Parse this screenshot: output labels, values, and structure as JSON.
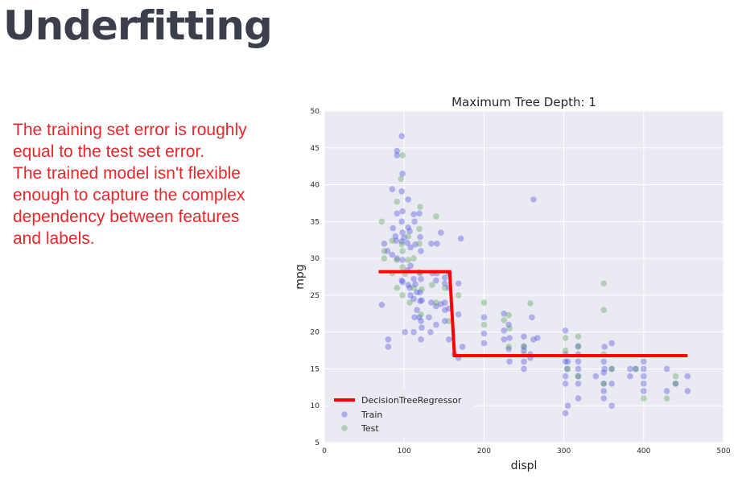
{
  "slide": {
    "title": "Underfitting",
    "body_lines": [
      "The training set error is roughly",
      "equal to the test set error.",
      "The trained model isn't flexible",
      "enough to capture the complex",
      "dependency between features",
      "and labels."
    ],
    "text_color": "#e8262b",
    "title_color": "#3b3f4c"
  },
  "chart_data": {
    "type": "scatter",
    "title": "Maximum Tree Depth: 1",
    "xlabel": "displ",
    "ylabel": "mpg",
    "xlim": [
      0,
      500
    ],
    "ylim": [
      5,
      50
    ],
    "xticks": [
      0,
      100,
      200,
      300,
      400,
      500
    ],
    "yticks": [
      5,
      10,
      15,
      20,
      25,
      30,
      35,
      40,
      45,
      50
    ],
    "grid": true,
    "background": "#eaeaf2",
    "legend_position": "lower-left",
    "series": [
      {
        "name": "Train",
        "kind": "scatter",
        "color": "#4040e0",
        "points": [
          [
            91,
            44.6
          ],
          [
            97,
            46.6
          ],
          [
            91,
            44
          ],
          [
            98,
            41.5
          ],
          [
            85,
            39.4
          ],
          [
            97,
            39.1
          ],
          [
            105,
            38
          ],
          [
            98,
            36.4
          ],
          [
            113,
            35
          ],
          [
            91,
            36.1
          ],
          [
            97,
            35
          ],
          [
            119,
            36.1
          ],
          [
            98,
            33.5
          ],
          [
            105,
            34.2
          ],
          [
            107,
            33.7
          ],
          [
            120,
            32.9
          ],
          [
            86,
            34.1
          ],
          [
            89,
            33
          ],
          [
            90,
            32.4
          ],
          [
            97,
            32.3
          ],
          [
            104,
            32.1
          ],
          [
            108,
            31.5
          ],
          [
            114,
            31.9
          ],
          [
            121,
            31
          ],
          [
            134,
            32
          ],
          [
            141,
            32
          ],
          [
            146,
            33.5
          ],
          [
            75,
            32
          ],
          [
            79,
            31
          ],
          [
            85,
            30.5
          ],
          [
            91,
            30
          ],
          [
            98,
            29.8
          ],
          [
            108,
            29
          ],
          [
            119,
            28.1
          ],
          [
            121,
            27.2
          ],
          [
            135,
            28
          ],
          [
            140,
            27
          ],
          [
            151,
            27.4
          ],
          [
            151,
            26.6
          ],
          [
            156,
            26
          ],
          [
            168,
            26.6
          ],
          [
            97,
            27
          ],
          [
            98,
            26.8
          ],
          [
            105,
            26.4
          ],
          [
            107,
            26
          ],
          [
            120,
            25.4
          ],
          [
            122,
            24.3
          ],
          [
            134,
            24
          ],
          [
            140,
            23.5
          ],
          [
            146,
            23.8
          ],
          [
            151,
            23
          ],
          [
            156,
            23.2
          ],
          [
            168,
            22.4
          ],
          [
            171,
            32.7
          ],
          [
            108,
            25
          ],
          [
            112,
            24.5
          ],
          [
            116,
            23
          ],
          [
            119,
            22
          ],
          [
            121,
            21.5
          ],
          [
            122,
            20.6
          ],
          [
            133,
            20
          ],
          [
            140,
            21
          ],
          [
            151,
            21.5
          ],
          [
            156,
            19
          ],
          [
            163,
            17
          ],
          [
            168,
            16.5
          ],
          [
            173,
            18
          ],
          [
            200,
            22
          ],
          [
            200,
            19.8
          ],
          [
            200,
            18.5
          ],
          [
            225,
            22.5
          ],
          [
            225,
            20.2
          ],
          [
            225,
            19
          ],
          [
            231,
            17.7
          ],
          [
            231,
            21
          ],
          [
            232,
            19.2
          ],
          [
            250,
            18
          ],
          [
            250,
            17.5
          ],
          [
            250,
            16
          ],
          [
            250,
            15
          ],
          [
            258,
            16.5
          ],
          [
            262,
            38
          ],
          [
            267,
            19.2
          ],
          [
            260,
            22
          ],
          [
            302,
            20.2
          ],
          [
            302,
            17
          ],
          [
            302,
            14
          ],
          [
            302,
            13
          ],
          [
            304,
            15
          ],
          [
            305,
            16
          ],
          [
            318,
            18.1
          ],
          [
            318,
            17
          ],
          [
            318,
            15
          ],
          [
            318,
            14
          ],
          [
            318,
            13
          ],
          [
            340,
            14
          ],
          [
            350,
            14.5
          ],
          [
            350,
            13
          ],
          [
            350,
            12
          ],
          [
            350,
            16
          ],
          [
            351,
            18
          ],
          [
            360,
            18.5
          ],
          [
            360,
            15
          ],
          [
            360,
            13
          ],
          [
            383,
            15
          ],
          [
            400,
            14
          ],
          [
            400,
            16
          ],
          [
            400,
            13
          ],
          [
            429,
            15
          ],
          [
            440,
            13
          ],
          [
            455,
            14
          ],
          [
            455,
            12
          ],
          [
            302,
            9
          ],
          [
            305,
            10
          ],
          [
            318,
            11
          ],
          [
            350,
            11
          ],
          [
            360,
            10
          ],
          [
            400,
            12
          ],
          [
            429,
            12
          ],
          [
            80,
            18
          ],
          [
            80,
            19
          ],
          [
            72,
            23.7
          ],
          [
            101,
            20
          ],
          [
            112,
            20
          ],
          [
            113,
            22
          ],
          [
            121,
            19
          ],
          [
            131,
            22
          ],
          [
            141,
            28
          ],
          [
            151,
            24
          ],
          [
            156,
            28
          ],
          [
            232,
            16
          ],
          [
            258,
            17
          ],
          [
            302,
            16
          ],
          [
            351,
            15
          ],
          [
            383,
            14
          ],
          [
            390,
            15
          ],
          [
            400,
            15
          ],
          [
            318,
            16
          ],
          [
            262,
            19
          ],
          [
            250,
            19.4
          ],
          [
            100,
            32.8
          ],
          [
            104,
            28.4
          ],
          [
            112,
            27.2
          ],
          [
            114,
            26.5
          ],
          [
            116,
            25.4
          ],
          [
            120,
            24.2
          ],
          [
            112,
            36
          ]
        ]
      },
      {
        "name": "Test",
        "kind": "scatter",
        "color": "#4a9a4a",
        "points": [
          [
            98,
            44
          ],
          [
            96,
            40.8
          ],
          [
            91,
            37.7
          ],
          [
            120,
            37
          ],
          [
            72,
            35
          ],
          [
            85,
            32.4
          ],
          [
            97,
            31.9
          ],
          [
            105,
            33
          ],
          [
            119,
            34
          ],
          [
            140,
            35.7
          ],
          [
            75,
            30
          ],
          [
            91,
            29.8
          ],
          [
            98,
            28.8
          ],
          [
            101,
            27.9
          ],
          [
            112,
            26
          ],
          [
            122,
            25.8
          ],
          [
            135,
            26.4
          ],
          [
            151,
            26
          ],
          [
            98,
            25
          ],
          [
            107,
            24
          ],
          [
            121,
            22.4
          ],
          [
            140,
            24
          ],
          [
            168,
            25
          ],
          [
            200,
            24
          ],
          [
            200,
            21
          ],
          [
            225,
            21.6
          ],
          [
            231,
            22.3
          ],
          [
            250,
            18.1
          ],
          [
            258,
            23.9
          ],
          [
            250,
            17
          ],
          [
            302,
            19.2
          ],
          [
            318,
            19.4
          ],
          [
            318,
            18
          ],
          [
            350,
            26.6
          ],
          [
            350,
            23
          ],
          [
            350,
            17
          ],
          [
            302,
            17.5
          ],
          [
            305,
            15
          ],
          [
            318,
            14
          ],
          [
            350,
            13
          ],
          [
            360,
            15
          ],
          [
            390,
            15
          ],
          [
            400,
            11
          ],
          [
            429,
            11
          ],
          [
            440,
            14
          ],
          [
            440,
            13
          ],
          [
            231,
            18
          ],
          [
            232,
            20.5
          ],
          [
            156,
            21.5
          ],
          [
            120,
            28
          ],
          [
            105,
            29.8
          ],
          [
            91,
            26
          ],
          [
            85,
            28
          ],
          [
            98,
            31
          ],
          [
            75,
            31
          ],
          [
            112,
            30
          ],
          [
            119,
            32
          ]
        ]
      },
      {
        "name": "DecisionTreeRegressor",
        "kind": "step-line",
        "color": "#ff0000",
        "points": [
          [
            68,
            28.2
          ],
          [
            157,
            28.2
          ],
          [
            163,
            16.8
          ],
          [
            455,
            16.8
          ]
        ]
      }
    ]
  }
}
